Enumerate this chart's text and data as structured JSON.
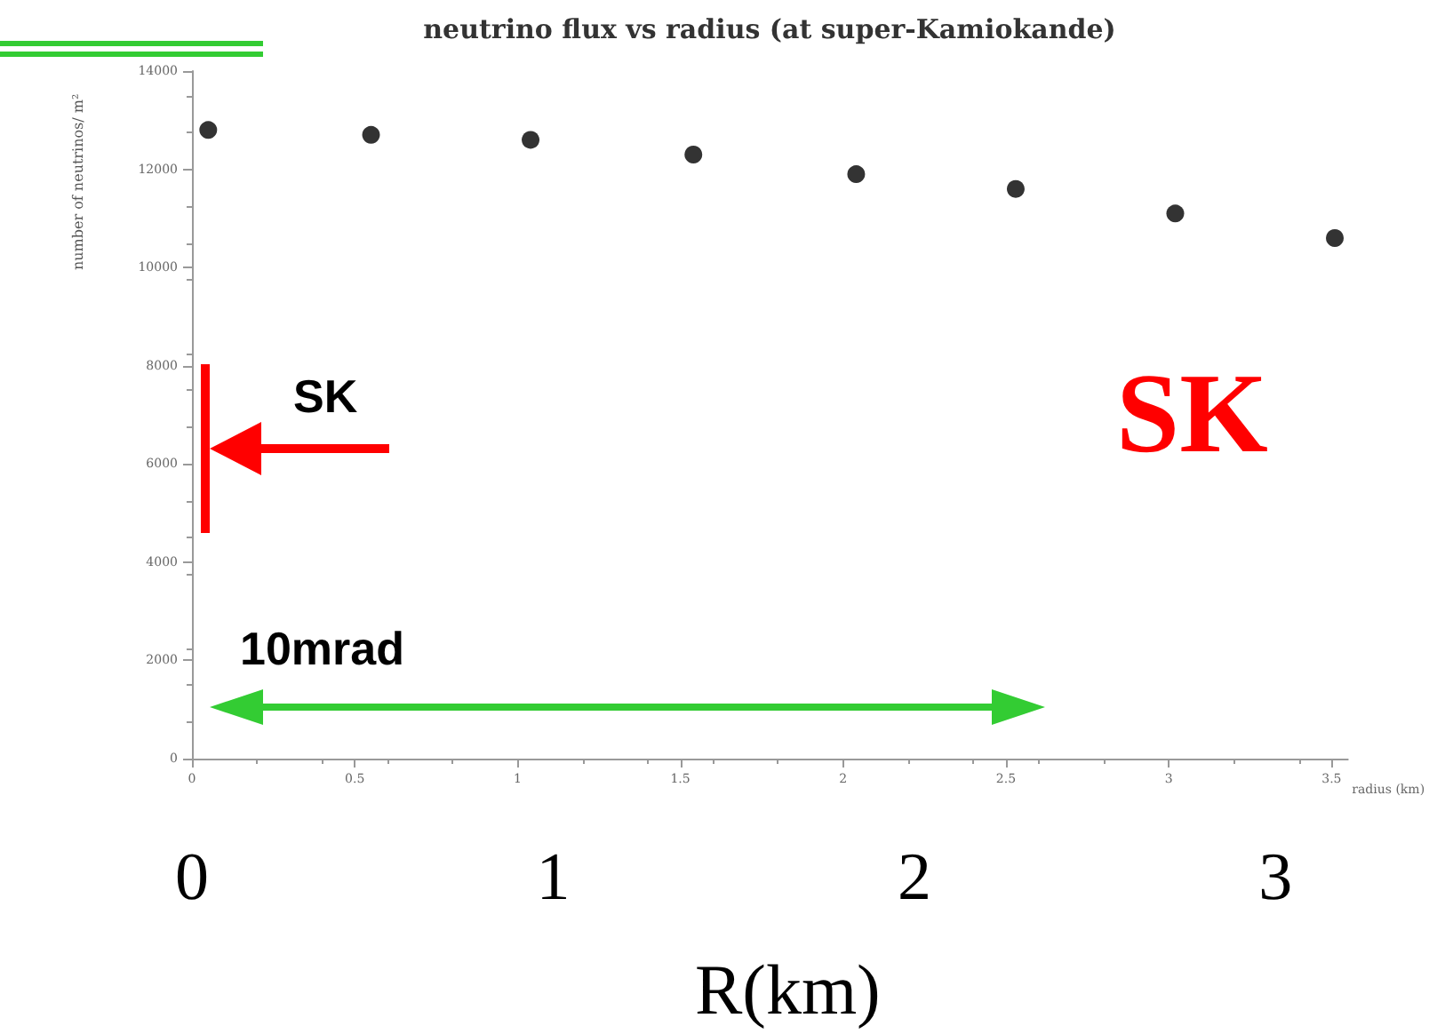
{
  "chart_data": {
    "type": "scatter",
    "title": "neutrino flux vs radius (at super-Kamiokande)",
    "xlabel": "radius (km)",
    "ylabel": "number of neutrinos/ m²",
    "x2label": "R(km)",
    "x": [
      0.05,
      0.55,
      1.04,
      1.54,
      2.04,
      2.53,
      3.02,
      3.51
    ],
    "series": [
      {
        "color": "#000000",
        "values": [
          12800,
          12700,
          12600,
          12300,
          11900,
          11600,
          11100,
          10600
        ]
      }
    ],
    "xlim": [
      0,
      3.55
    ],
    "xticks": [
      0,
      0.5,
      1,
      1.5,
      2,
      2.5,
      3,
      3.5
    ],
    "ylim": [
      0,
      14000
    ],
    "yticks": [
      0,
      2000,
      4000,
      6000,
      8000,
      10000,
      12000,
      14000
    ],
    "x2lim": [
      0,
      3.2
    ],
    "x2ticks": [
      0,
      1,
      2,
      3
    ],
    "marker": "circle",
    "grid": false,
    "annotations": [
      "SK",
      "10mrad",
      "SK"
    ]
  }
}
